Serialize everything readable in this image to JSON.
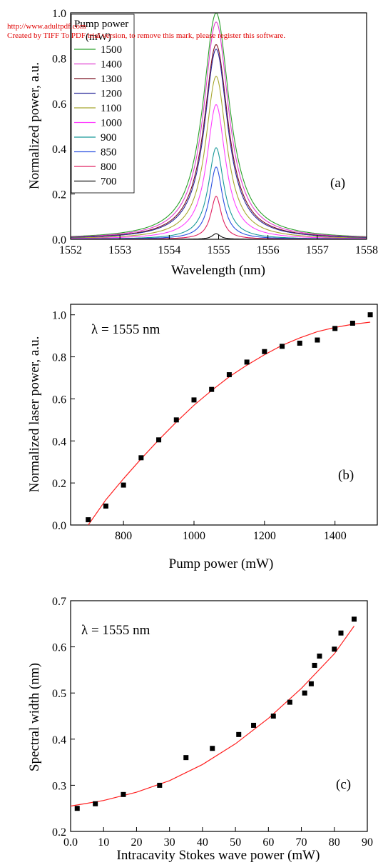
{
  "watermark": {
    "line1": "http://www.adultpdf.com",
    "line2": "Created by TIFF To PDF trial version, to remove this mark, please register this software."
  },
  "chart_data": [
    {
      "panel": "a",
      "type": "line",
      "panel_label": "(a)",
      "xlabel": "Wavelength (nm)",
      "ylabel": "Normalized power, a.u.",
      "xlim": [
        1552,
        1558
      ],
      "ylim": [
        0,
        1.0
      ],
      "xticks": [
        1552,
        1553,
        1554,
        1555,
        1556,
        1557,
        1558
      ],
      "yticks": [
        0.0,
        0.2,
        0.4,
        0.6,
        0.8,
        1.0
      ],
      "ytick_labels": [
        "0.0",
        "0.2",
        "0.4",
        "0.6",
        "0.8",
        "1.0"
      ],
      "legend_title_line1": "Pump power",
      "legend_title_line2": "(mW)",
      "legend_position": "top-left",
      "grid": false,
      "peak_wavelength": 1554.95,
      "series": [
        {
          "name": "1500",
          "color": "#2aa02a",
          "peak": 1.0,
          "halfwidth": 0.33
        },
        {
          "name": "1400",
          "color": "#e040d0",
          "peak": 0.96,
          "halfwidth": 0.31
        },
        {
          "name": "1300",
          "color": "#7a1020",
          "peak": 0.86,
          "halfwidth": 0.3
        },
        {
          "name": "1200",
          "color": "#2a2a9a",
          "peak": 0.84,
          "halfwidth": 0.29
        },
        {
          "name": "1100",
          "color": "#a8a830",
          "peak": 0.72,
          "halfwidth": 0.26
        },
        {
          "name": "1000",
          "color": "#ff40ff",
          "peak": 0.595,
          "halfwidth": 0.23
        },
        {
          "name": "900",
          "color": "#1a9a9a",
          "peak": 0.405,
          "halfwidth": 0.19
        },
        {
          "name": "850",
          "color": "#2a50e0",
          "peak": 0.32,
          "halfwidth": 0.16
        },
        {
          "name": "800",
          "color": "#e02060",
          "peak": 0.19,
          "halfwidth": 0.13
        },
        {
          "name": "700",
          "color": "#111111",
          "peak": 0.025,
          "halfwidth": 0.1
        }
      ]
    },
    {
      "panel": "b",
      "type": "scatter",
      "panel_label": "(b)",
      "annotation": "λ  = 1555 nm",
      "xlabel": "Pump power (mW)",
      "ylabel": "Normalized laser power, a.u.",
      "xlim": [
        650,
        1520
      ],
      "ylim": [
        0,
        1.05
      ],
      "xticks": [
        800,
        1000,
        1200,
        1400
      ],
      "yticks": [
        0.0,
        0.2,
        0.4,
        0.6,
        0.8,
        1.0
      ],
      "ytick_labels": [
        "0.0",
        "0.2",
        "0.4",
        "0.6",
        "0.8",
        "1.0"
      ],
      "grid": false,
      "points": {
        "x": [
          700,
          750,
          800,
          850,
          900,
          950,
          1000,
          1050,
          1100,
          1150,
          1200,
          1250,
          1300,
          1350,
          1400,
          1450,
          1500
        ],
        "y": [
          0.025,
          0.09,
          0.19,
          0.32,
          0.405,
          0.5,
          0.595,
          0.645,
          0.715,
          0.775,
          0.825,
          0.85,
          0.865,
          0.88,
          0.935,
          0.96,
          1.0
        ]
      },
      "fit": {
        "x": [
          700,
          750,
          800,
          850,
          900,
          950,
          1000,
          1050,
          1100,
          1150,
          1200,
          1250,
          1300,
          1350,
          1400,
          1450,
          1500
        ],
        "y": [
          0.0,
          0.12,
          0.22,
          0.315,
          0.405,
          0.49,
          0.57,
          0.64,
          0.705,
          0.76,
          0.81,
          0.855,
          0.89,
          0.92,
          0.94,
          0.955,
          0.965
        ]
      },
      "fit_color": "#ff2020"
    },
    {
      "panel": "c",
      "type": "scatter",
      "panel_label": "(c)",
      "annotation": "λ = 1555 nm",
      "xlabel": "Intracavity Stokes wave power (mW)",
      "ylabel": "Spectral width (nm)",
      "xlim": [
        0,
        90
      ],
      "ylim": [
        0.2,
        0.7
      ],
      "xticks": [
        0,
        10,
        20,
        30,
        40,
        50,
        60,
        70,
        80,
        90
      ],
      "xtick_labels": [
        "0.0",
        "10",
        "20",
        "30",
        "40",
        "50",
        "60",
        "70",
        "80",
        "90"
      ],
      "yticks": [
        0.2,
        0.3,
        0.4,
        0.5,
        0.6,
        0.7
      ],
      "ytick_labels": [
        "0.2",
        "0.3",
        "0.4",
        "0.5",
        "0.6",
        "0.7"
      ],
      "grid": false,
      "points": {
        "x": [
          2,
          7.5,
          16,
          27,
          35,
          43,
          51,
          55.5,
          61.5,
          66.5,
          71,
          73,
          74,
          75.5,
          80,
          82,
          86
        ],
        "y": [
          0.25,
          0.26,
          0.28,
          0.3,
          0.36,
          0.38,
          0.41,
          0.43,
          0.45,
          0.48,
          0.5,
          0.52,
          0.56,
          0.58,
          0.595,
          0.63,
          0.66
        ]
      },
      "fit": {
        "x": [
          0,
          10,
          20,
          30,
          40,
          50,
          60,
          70,
          80,
          86
        ],
        "y": [
          0.255,
          0.267,
          0.285,
          0.31,
          0.345,
          0.39,
          0.445,
          0.51,
          0.585,
          0.645
        ]
      },
      "fit_color": "#ff2020"
    }
  ]
}
